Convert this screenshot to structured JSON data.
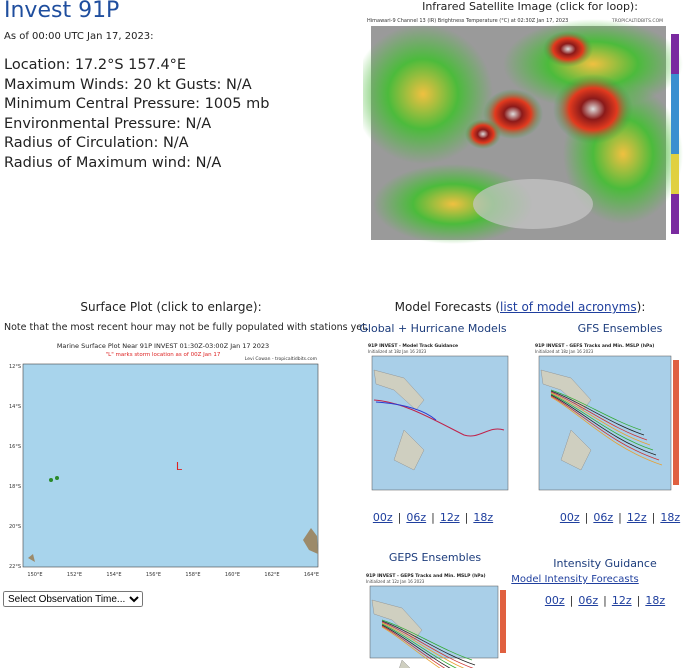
{
  "storm": {
    "title": "Invest 91P",
    "as_of": "As of 00:00 UTC Jan 17, 2023:",
    "details": [
      "Location: 17.2°S 157.4°E",
      "Maximum Winds: 20 kt  Gusts: N/A",
      "Minimum Central Pressure: 1005 mb",
      "Environmental Pressure: N/A",
      "Radius of Circulation: N/A",
      "Radius of Maximum wind: N/A"
    ]
  },
  "satellite": {
    "heading": "Infrared Satellite Image (click for loop):",
    "image_title": "Himawari-9 Channel 13 (IR) Brightness Temperature (°C) at 02:30Z Jan 17, 2023",
    "credit": "TROPICALTIDBITS.COM"
  },
  "surface": {
    "heading": "Surface Plot (click to enlarge):",
    "note": "Note that the most recent hour may not be fully populated with stations yet.",
    "plot_title": "Marine Surface Plot Near 91P INVEST 01:30Z-03:00Z Jan 17 2023",
    "plot_subtitle": "\"L\" marks storm location as of 00Z Jan 17",
    "credit": "Levi Cowan - tropicaltidbits.com",
    "storm_mark": "L",
    "lat_labels": [
      "12°S",
      "14°S",
      "16°S",
      "18°S",
      "20°S",
      "22°S"
    ],
    "lon_labels": [
      "150°E",
      "152°E",
      "154°E",
      "156°E",
      "158°E",
      "160°E",
      "162°E",
      "164°E"
    ],
    "select": "Select Observation Time..."
  },
  "models": {
    "heading": "Model Forecasts (",
    "heading_link": "list of model acronyms",
    "heading_end": "):",
    "separator": "|",
    "panels": [
      {
        "title": "Global + Hurricane Models",
        "image_title": "91P INVEST - Model Track Guidance",
        "image_sub": "Initialized at 18z Jan 16 2023",
        "links": [
          "00z",
          "06z",
          "12z",
          "18z"
        ]
      },
      {
        "title": "GFS Ensembles",
        "image_title": "91P INVEST - GEFS Tracks and Min. MSLP (hPa)",
        "image_sub": "Initialized at 18z Jan 16 2023",
        "links": [
          "00z",
          "06z",
          "12z",
          "18z"
        ]
      },
      {
        "title": "GEPS Ensembles",
        "image_title": "91P INVEST - GEPS Tracks and Min. MSLP (hPa)",
        "image_sub": "Initialized at 12z Jan 16 2023"
      }
    ],
    "intensity": {
      "title": "Intensity Guidance",
      "link": "Model Intensity Forecasts",
      "links": [
        "00z",
        "06z",
        "12z",
        "18z"
      ]
    }
  }
}
